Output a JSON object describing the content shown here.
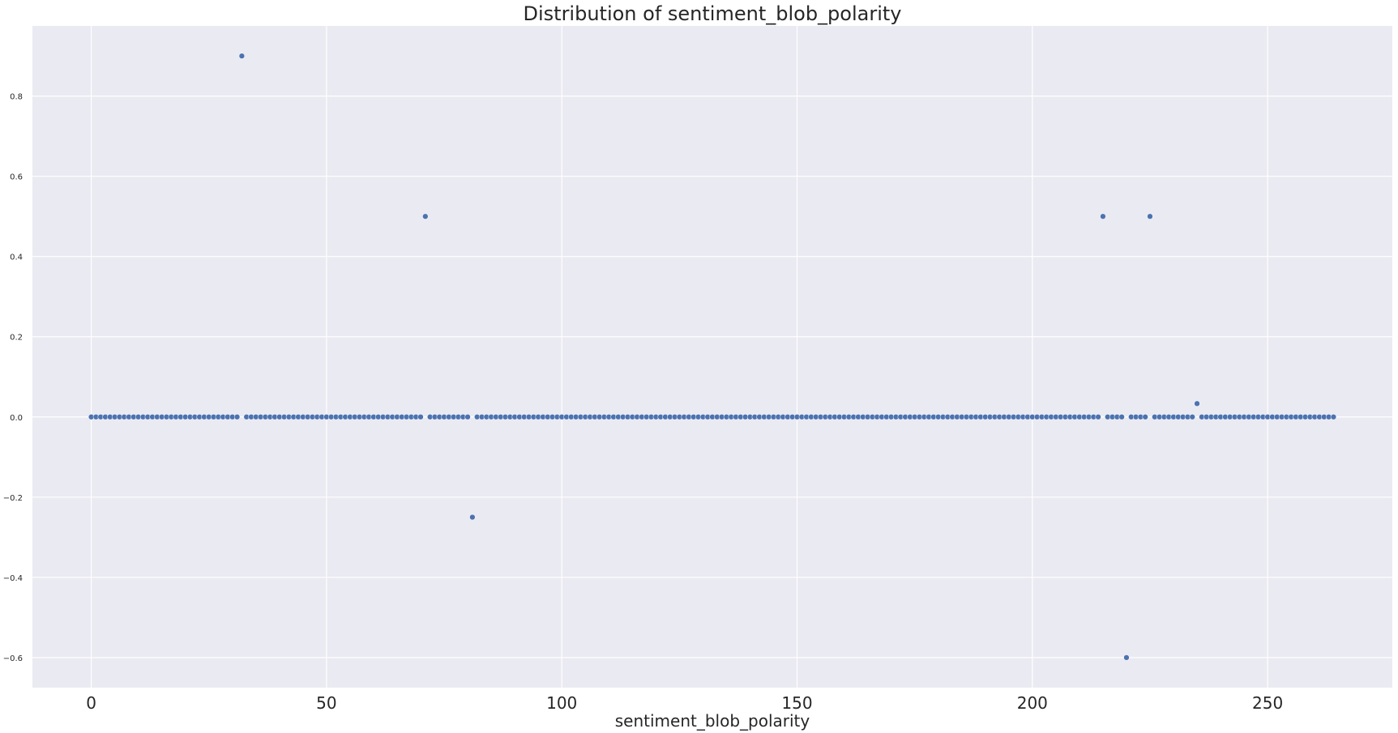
{
  "chart_data": {
    "type": "scatter",
    "title": "Distribution of sentiment_blob_polarity",
    "xlabel": "sentiment_blob_polarity",
    "ylabel": "",
    "xlim": [
      -12.5,
      276.5
    ],
    "ylim": [
      -0.675,
      0.975
    ],
    "xticks": [
      0,
      50,
      100,
      150,
      200,
      250
    ],
    "yticks": [
      -0.6,
      -0.4,
      -0.2,
      0.0,
      0.2,
      0.4,
      0.6,
      0.8
    ],
    "xtick_labels": [
      "0",
      "50",
      "100",
      "150",
      "200",
      "250"
    ],
    "ytick_labels": [
      "−0.6",
      "−0.4",
      "−0.2",
      "0.0",
      "0.2",
      "0.4",
      "0.6",
      "0.8"
    ],
    "grid": true,
    "background_color": "#eaeaf2",
    "grid_color": "#ffffff",
    "marker_color": "#4c72b0",
    "series": [
      {
        "x": [
          0,
          1,
          2,
          3,
          4,
          5,
          6,
          7,
          8,
          9,
          10,
          11,
          12,
          13,
          14,
          15,
          16,
          17,
          18,
          19,
          20,
          21,
          22,
          23,
          24,
          25,
          26,
          27,
          28,
          29,
          30,
          31,
          32,
          33,
          34,
          35,
          36,
          37,
          38,
          39,
          40,
          41,
          42,
          43,
          44,
          45,
          46,
          47,
          48,
          49,
          50,
          51,
          52,
          53,
          54,
          55,
          56,
          57,
          58,
          59,
          60,
          61,
          62,
          63,
          64,
          65,
          66,
          67,
          68,
          69,
          70,
          71,
          72,
          73,
          74,
          75,
          76,
          77,
          78,
          79,
          80,
          81,
          82,
          83,
          84,
          85,
          86,
          87,
          88,
          89,
          90,
          91,
          92,
          93,
          94,
          95,
          96,
          97,
          98,
          99,
          100,
          101,
          102,
          103,
          104,
          105,
          106,
          107,
          108,
          109,
          110,
          111,
          112,
          113,
          114,
          115,
          116,
          117,
          118,
          119,
          120,
          121,
          122,
          123,
          124,
          125,
          126,
          127,
          128,
          129,
          130,
          131,
          132,
          133,
          134,
          135,
          136,
          137,
          138,
          139,
          140,
          141,
          142,
          143,
          144,
          145,
          146,
          147,
          148,
          149,
          150,
          151,
          152,
          153,
          154,
          155,
          156,
          157,
          158,
          159,
          160,
          161,
          162,
          163,
          164,
          165,
          166,
          167,
          168,
          169,
          170,
          171,
          172,
          173,
          174,
          175,
          176,
          177,
          178,
          179,
          180,
          181,
          182,
          183,
          184,
          185,
          186,
          187,
          188,
          189,
          190,
          191,
          192,
          193,
          194,
          195,
          196,
          197,
          198,
          199,
          200,
          201,
          202,
          203,
          204,
          205,
          206,
          207,
          208,
          209,
          210,
          211,
          212,
          213,
          214,
          215,
          216,
          217,
          218,
          219,
          220,
          221,
          222,
          223,
          224,
          225,
          226,
          227,
          228,
          229,
          230,
          231,
          232,
          233,
          234,
          235,
          236,
          237,
          238,
          239,
          240,
          241,
          242,
          243,
          244,
          245,
          246,
          247,
          248,
          249,
          250,
          251,
          252,
          253,
          254,
          255,
          256,
          257,
          258,
          259,
          260,
          261,
          262,
          263,
          264
        ],
        "y": [
          0,
          0,
          0,
          0,
          0,
          0,
          0,
          0,
          0,
          0,
          0,
          0,
          0,
          0,
          0,
          0,
          0,
          0,
          0,
          0,
          0,
          0,
          0,
          0,
          0,
          0,
          0,
          0,
          0,
          0,
          0,
          0,
          0.9,
          0,
          0,
          0,
          0,
          0,
          0,
          0,
          0,
          0,
          0,
          0,
          0,
          0,
          0,
          0,
          0,
          0,
          0,
          0,
          0,
          0,
          0,
          0,
          0,
          0,
          0,
          0,
          0,
          0,
          0,
          0,
          0,
          0,
          0,
          0,
          0,
          0,
          0,
          0.5,
          0,
          0,
          0,
          0,
          0,
          0,
          0,
          0,
          0,
          -0.25,
          0,
          0,
          0,
          0,
          0,
          0,
          0,
          0,
          0,
          0,
          0,
          0,
          0,
          0,
          0,
          0,
          0,
          0,
          0,
          0,
          0,
          0,
          0,
          0,
          0,
          0,
          0,
          0,
          0,
          0,
          0,
          0,
          0,
          0,
          0,
          0,
          0,
          0,
          0,
          0,
          0,
          0,
          0,
          0,
          0,
          0,
          0,
          0,
          0,
          0,
          0,
          0,
          0,
          0,
          0,
          0,
          0,
          0,
          0,
          0,
          0,
          0,
          0,
          0,
          0,
          0,
          0,
          0,
          0,
          0,
          0,
          0,
          0,
          0,
          0,
          0,
          0,
          0,
          0,
          0,
          0,
          0,
          0,
          0,
          0,
          0,
          0,
          0,
          0,
          0,
          0,
          0,
          0,
          0,
          0,
          0,
          0,
          0,
          0,
          0,
          0,
          0,
          0,
          0,
          0,
          0,
          0,
          0,
          0,
          0,
          0,
          0,
          0,
          0,
          0,
          0,
          0,
          0,
          0,
          0,
          0,
          0,
          0,
          0,
          0,
          0,
          0,
          0,
          0,
          0,
          0,
          0,
          0,
          0.5,
          0,
          0,
          0,
          0,
          -0.6,
          0,
          0,
          0,
          0,
          0.5,
          0,
          0,
          0,
          0,
          0,
          0,
          0,
          0,
          0,
          0.0333,
          0,
          0,
          0,
          0,
          0,
          0,
          0,
          0,
          0,
          0,
          0,
          0,
          0,
          0,
          0,
          0,
          0,
          0,
          0,
          0,
          0,
          0,
          0,
          0,
          0,
          0,
          0,
          0,
          0
        ]
      }
    ]
  }
}
